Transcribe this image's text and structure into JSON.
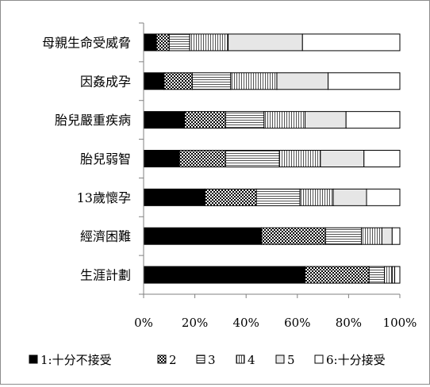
{
  "chart_data": {
    "type": "bar",
    "orientation": "horizontal",
    "stacked": "percent",
    "title": "",
    "xlabel": "",
    "ylabel": "",
    "xlim": [
      0,
      100
    ],
    "x_ticks": [
      "0%",
      "20%",
      "40%",
      "60%",
      "80%",
      "100%"
    ],
    "categories": [
      "母親生命受威脅",
      "因姦成孕",
      "胎兒嚴重疾病",
      "胎兒弱智",
      "13歲懷孕",
      "經濟困難",
      "生涯計劃"
    ],
    "series": [
      {
        "name": "1:十分不接受",
        "pattern": "solid-black",
        "values": [
          5,
          8,
          16,
          14,
          24,
          46,
          63
        ]
      },
      {
        "name": "2",
        "pattern": "dots",
        "values": [
          5,
          11,
          16,
          18,
          20,
          25,
          25
        ]
      },
      {
        "name": "3",
        "pattern": "horizontal-lines",
        "values": [
          8,
          15,
          15,
          21,
          17,
          14,
          6
        ]
      },
      {
        "name": "4",
        "pattern": "vertical-lines",
        "values": [
          15,
          18,
          16,
          16,
          13,
          8,
          3
        ]
      },
      {
        "name": "5",
        "pattern": "light-fill",
        "values": [
          29,
          20,
          16,
          17,
          13,
          4,
          1
        ]
      },
      {
        "name": "6:十分接受",
        "pattern": "white",
        "values": [
          38,
          28,
          21,
          14,
          13,
          3,
          2
        ]
      }
    ],
    "grid": false,
    "legend": "bottom"
  }
}
